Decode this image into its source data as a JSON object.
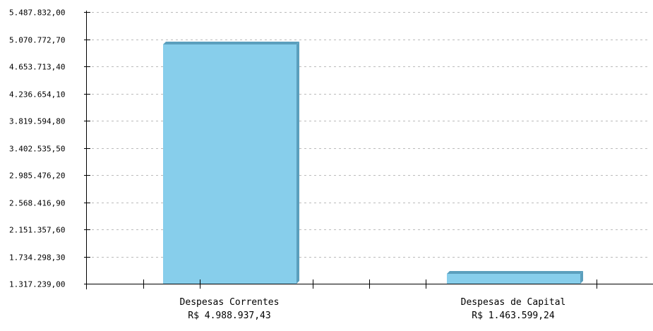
{
  "chart_data": {
    "type": "bar",
    "categories": [
      "Despesas Correntes",
      "Despesas de Capital"
    ],
    "value_labels": [
      "R$ 4.988.937,43",
      "R$ 1.463.599,24"
    ],
    "values": [
      4988937.43,
      1463599.24
    ],
    "ylim": [
      1317239.0,
      5487832.0
    ],
    "yticks": [
      {
        "value": 1317239.0,
        "label": "1.317.239,00"
      },
      {
        "value": 1734298.3,
        "label": "1.734.298,30"
      },
      {
        "value": 2151357.6,
        "label": "2.151.357,60"
      },
      {
        "value": 2568416.9,
        "label": "2.568.416,90"
      },
      {
        "value": 2985476.2,
        "label": "2.985.476,20"
      },
      {
        "value": 3402535.5,
        "label": "3.402.535,50"
      },
      {
        "value": 3819594.8,
        "label": "3.819.594,80"
      },
      {
        "value": 4236654.1,
        "label": "4.236.654,10"
      },
      {
        "value": 4653713.4,
        "label": "4.653.713,40"
      },
      {
        "value": 5070772.7,
        "label": "5.070.772,70"
      },
      {
        "value": 5487832.0,
        "label": "5.487.832,00"
      }
    ],
    "grid": true,
    "colors": {
      "bar_face": "#87ceeb",
      "bar_side": "#5b9fbd",
      "grid": "#bbbbbb",
      "axis": "#000000"
    }
  }
}
